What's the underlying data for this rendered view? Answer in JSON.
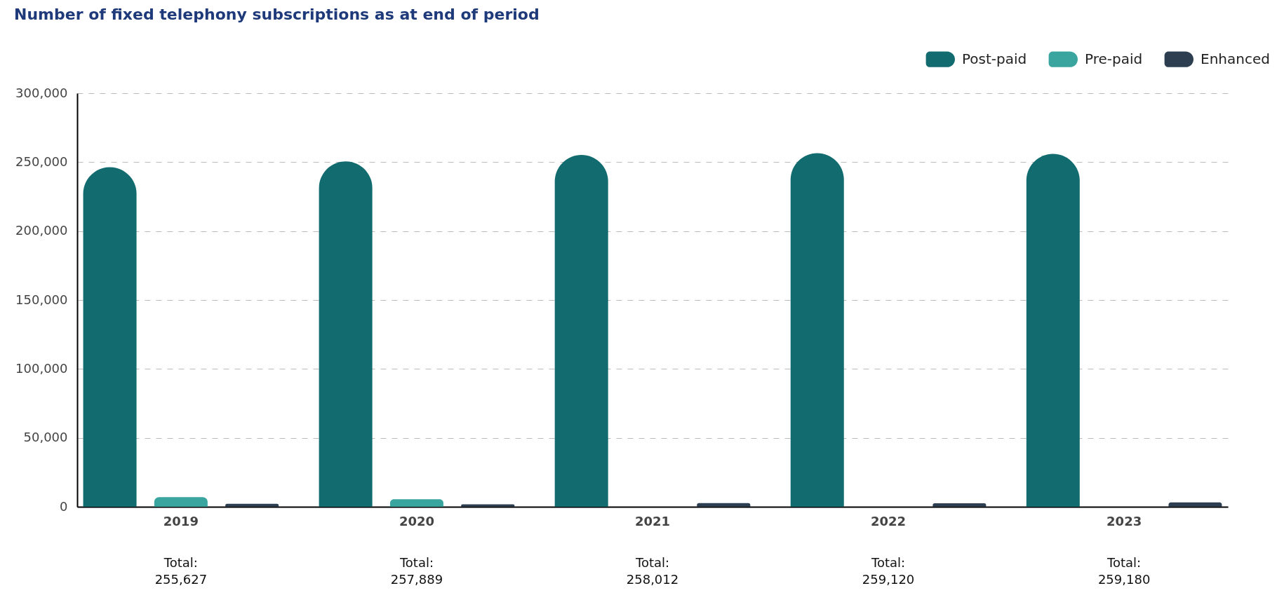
{
  "chart_data": {
    "type": "bar",
    "title": "Number of fixed telephony subscriptions as at end of period",
    "categories": [
      "2019",
      "2020",
      "2021",
      "2022",
      "2023"
    ],
    "series": [
      {
        "name": "Post-paid",
        "color": "#116b6f",
        "values": [
          246400,
          250600,
          255300,
          256500,
          256000
        ]
      },
      {
        "name": "Pre-paid",
        "color": "#3aa59f",
        "values": [
          7000,
          5500,
          0,
          0,
          0
        ]
      },
      {
        "name": "Enhanced",
        "color": "#2c3e50",
        "values": [
          2200,
          1800,
          2700,
          2600,
          3200
        ]
      }
    ],
    "annotations": [
      "Total:\n255,627",
      "Total:\n257,889",
      "Total:\n258,012",
      "Total:\n259,120",
      "Total:\n259,180"
    ],
    "ylim": [
      0,
      300000
    ],
    "yticks": [
      0,
      {
        "value": 50000,
        "label": "50,000"
      },
      {
        "value": 100000,
        "label": "100,000"
      },
      {
        "value": 150000,
        "label": "150,000"
      },
      {
        "value": 200000,
        "label": "200,000"
      },
      {
        "value": 250000,
        "label": "250,000"
      },
      {
        "value": 300000,
        "label": "300,000"
      }
    ],
    "grid": "y",
    "legend": "top right"
  }
}
